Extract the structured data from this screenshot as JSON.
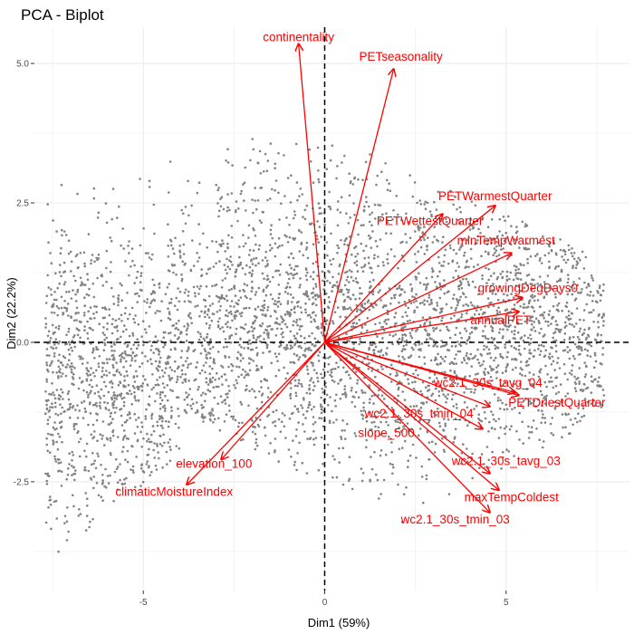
{
  "chart_data": {
    "type": "scatter",
    "title": "PCA - Biplot",
    "xlabel": "Dim1 (59%)",
    "ylabel": "Dim2 (22.2%)",
    "xlim": [
      -8.0,
      8.4
    ],
    "ylim": [
      -4.45,
      5.65
    ],
    "x_ticks": [
      -5,
      0,
      5
    ],
    "x_tick_labels": [
      "-5",
      "0",
      "5"
    ],
    "y_ticks": [
      -2.5,
      0.0,
      2.5,
      5.0
    ],
    "y_tick_labels": [
      "-2.5",
      "0.0",
      "2.5",
      "5.0"
    ],
    "grid": true,
    "reference_lines": {
      "x": 0,
      "y": 0,
      "style": "dashed"
    },
    "colors": {
      "points": "#595959",
      "arrows": "#ff0000",
      "grid": "#ebebeb"
    },
    "variables": [
      {
        "name": "continentality",
        "x": -0.72,
        "y": 5.35,
        "label_x": -0.72,
        "label_y": 5.4
      },
      {
        "name": "PETseasonality",
        "x": 1.9,
        "y": 4.9,
        "label_x": 2.1,
        "label_y": 5.05
      },
      {
        "name": "PETWarmestQuarter",
        "x": 4.7,
        "y": 2.45,
        "label_x": 4.7,
        "label_y": 2.55
      },
      {
        "name": "PETWettestQuarter",
        "x": 3.25,
        "y": 2.3,
        "label_x": 2.9,
        "label_y": 2.1
      },
      {
        "name": "minTempWarmest",
        "x": 5.15,
        "y": 1.6,
        "label_x": 5.0,
        "label_y": 1.75
      },
      {
        "name": "growingDegDays0",
        "x": 5.45,
        "y": 0.8,
        "label_x": 5.6,
        "label_y": 0.9
      },
      {
        "name": "annualPET",
        "x": 5.35,
        "y": 0.55,
        "label_x": 4.85,
        "label_y": 0.32
      },
      {
        "name": "wc2.1_30s_tavg_04",
        "x": 5.25,
        "y": -0.9,
        "label_x": 4.5,
        "label_y": -0.8
      },
      {
        "name": "PETDriestQuarter",
        "x": 5.35,
        "y": -0.95,
        "label_x": 6.4,
        "label_y": -1.15
      },
      {
        "name": "wc2.1_30s_tmin_04",
        "x": 4.55,
        "y": -1.15,
        "label_x": 2.6,
        "label_y": -1.35
      },
      {
        "name": "slope_500",
        "x": 4.35,
        "y": -1.55,
        "label_x": 1.7,
        "label_y": -1.7
      },
      {
        "name": "wc2.1_30s_tavg_03",
        "x": 4.55,
        "y": -2.35,
        "label_x": 5.0,
        "label_y": -2.2
      },
      {
        "name": "maxTempColdest",
        "x": 4.8,
        "y": -2.65,
        "label_x": 5.15,
        "label_y": -2.85
      },
      {
        "name": "wc2.1_30s_tmin_03",
        "x": 4.55,
        "y": -3.05,
        "label_x": 3.6,
        "label_y": -3.25
      },
      {
        "name": "elevation_100",
        "x": -2.85,
        "y": -2.1,
        "label_x": -3.05,
        "label_y": -2.25
      },
      {
        "name": "climaticMoistureIndex",
        "x": -3.8,
        "y": -2.55,
        "label_x": -4.15,
        "label_y": -2.75
      }
    ],
    "observations": {
      "approx_count": 6000,
      "marker": "small dots",
      "note": "individual observations scattered mostly within Dim1 -7.7..7.7, Dim2 -4.2..3.9"
    }
  }
}
